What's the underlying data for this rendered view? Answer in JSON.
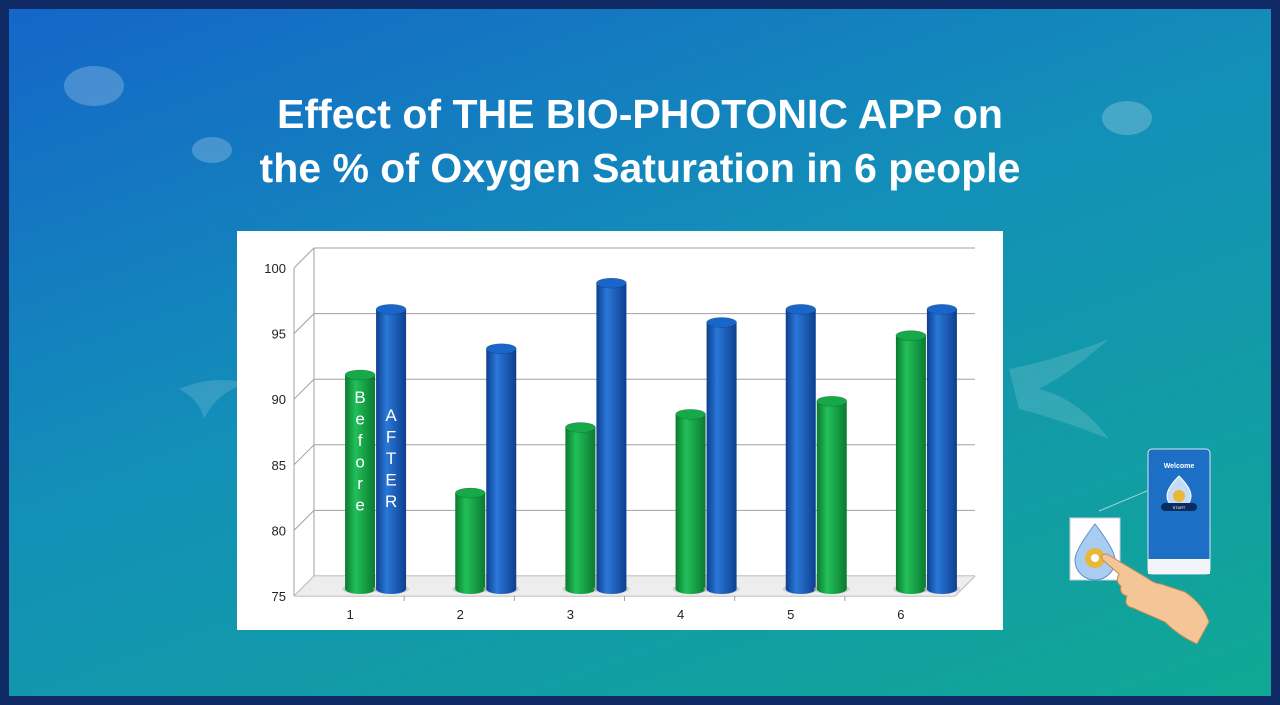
{
  "title_line1": "Effect of THE BIO-PHOTONIC APP on",
  "title_line2": "the % of Oxygen Saturation in 6 people",
  "chart_data": {
    "type": "bar",
    "categories": [
      "1",
      "2",
      "3",
      "4",
      "5",
      "6"
    ],
    "series": [
      {
        "name": "Before",
        "color": "#0fa040",
        "values": [
          92,
          83,
          88,
          89,
          90,
          95
        ]
      },
      {
        "name": "AFTER",
        "color": "#1560c0",
        "values": [
          97,
          94,
          99,
          96,
          97,
          97
        ]
      }
    ],
    "column_order": [
      [
        "Before",
        "AFTER"
      ],
      [
        "Before",
        "AFTER"
      ],
      [
        "Before",
        "AFTER"
      ],
      [
        "Before",
        "AFTER"
      ],
      [
        "AFTER",
        "Before"
      ],
      [
        "Before",
        "AFTER"
      ]
    ],
    "ylim": [
      75,
      100
    ],
    "yticks": [
      75,
      80,
      85,
      90,
      95,
      100
    ],
    "grid": true,
    "annotations": [
      "Before",
      "AFTER"
    ]
  },
  "phone": {
    "welcome": "Welcome",
    "start_button": "START"
  },
  "icons": [
    "water-drop-icon",
    "hand-pointer-icon",
    "phone-icon"
  ]
}
